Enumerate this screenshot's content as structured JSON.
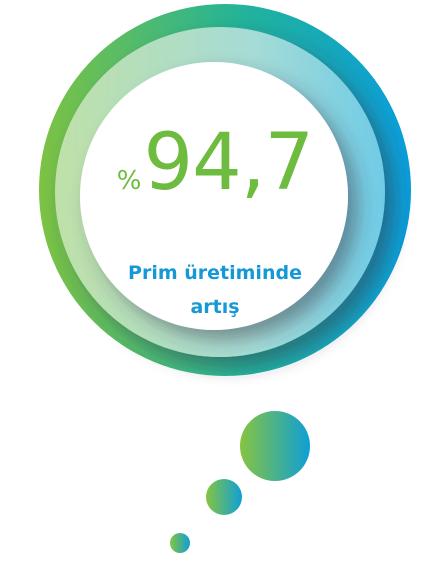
{
  "stat": {
    "unit": "%",
    "value": "94,7",
    "label": "Prim üretiminde artış"
  }
}
